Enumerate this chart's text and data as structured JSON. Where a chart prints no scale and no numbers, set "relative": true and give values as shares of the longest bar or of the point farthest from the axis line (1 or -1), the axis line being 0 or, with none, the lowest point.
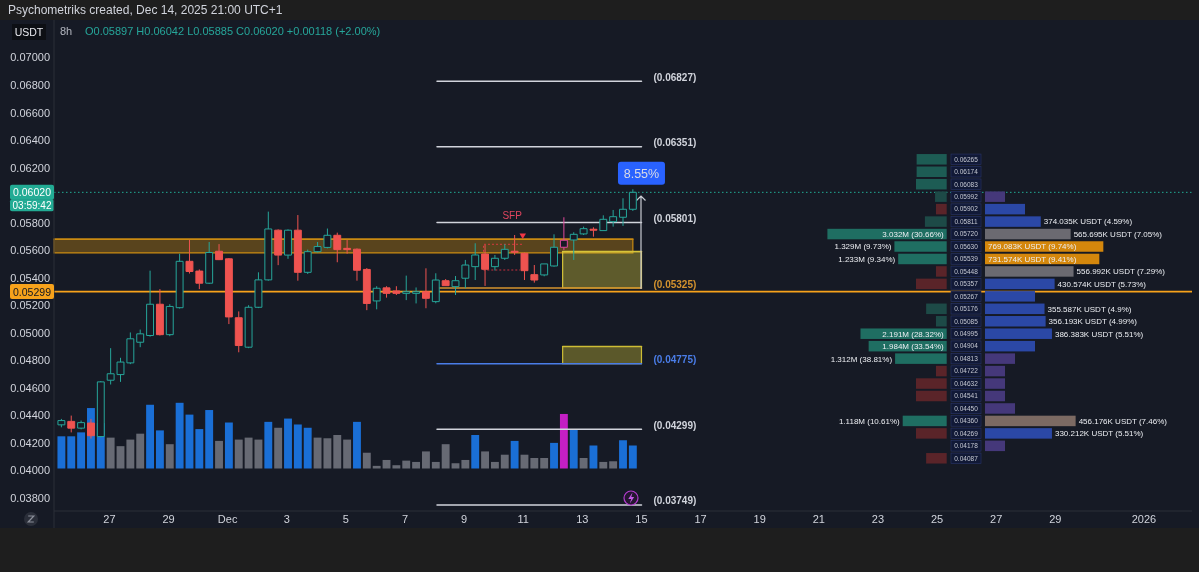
{
  "chart_data": [
    {
      "type": "candlestick",
      "title": "Psychometriks created, Dec 14, 2025 21:00 UTC+1",
      "subtitle": "8h",
      "ylabel": "USDT",
      "annotations": [
        "O0.05897 H0.06042 L0.05885 C0.06020 +0.00118 (+2.00%)",
        {
          "text": "03:59:42",
          "y": 0.0602
        },
        {
          "text": "SFP",
          "x": "2025-12-10T15:00",
          "y": 0.05801
        },
        {
          "text": "8.55%",
          "x": "2025-12-15T00:00",
          "y": 0.0602
        }
      ],
      "x": [
        "2025-11-25T09:00",
        "2025-11-25T17:00",
        "2025-11-26T01:00",
        "2025-11-26T09:00",
        "2025-11-26T17:00",
        "2025-11-27T01:00",
        "2025-11-27T09:00",
        "2025-11-27T17:00",
        "2025-11-28T01:00",
        "2025-11-28T09:00",
        "2025-11-28T17:00",
        "2025-11-29T01:00",
        "2025-11-29T09:00",
        "2025-11-29T17:00",
        "2025-11-30T01:00",
        "2025-11-30T09:00",
        "2025-11-30T17:00",
        "2025-12-01T01:00",
        "2025-12-01T09:00",
        "2025-12-01T17:00",
        "2025-12-02T01:00",
        "2025-12-02T09:00",
        "2025-12-02T17:00",
        "2025-12-03T01:00",
        "2025-12-03T09:00",
        "2025-12-03T17:00",
        "2025-12-04T01:00",
        "2025-12-04T09:00",
        "2025-12-04T17:00",
        "2025-12-05T01:00",
        "2025-12-05T09:00",
        "2025-12-05T17:00",
        "2025-12-06T01:00",
        "2025-12-06T09:00",
        "2025-12-06T17:00",
        "2025-12-07T01:00",
        "2025-12-07T09:00",
        "2025-12-07T17:00",
        "2025-12-08T01:00",
        "2025-12-08T09:00",
        "2025-12-08T17:00",
        "2025-12-09T01:00",
        "2025-12-09T09:00",
        "2025-12-09T17:00",
        "2025-12-10T01:00",
        "2025-12-10T09:00",
        "2025-12-10T17:00",
        "2025-12-11T01:00",
        "2025-12-11T09:00",
        "2025-12-11T17:00",
        "2025-12-12T01:00",
        "2025-12-12T09:00",
        "2025-12-12T17:00",
        "2025-12-13T01:00",
        "2025-12-13T09:00",
        "2025-12-13T17:00",
        "2025-12-14T01:00",
        "2025-12-14T09:00",
        "2025-12-14T17:00"
      ],
      "ohlc": [
        [
          0.04331,
          0.04374,
          0.04313,
          0.04362
        ],
        [
          0.04356,
          0.04398,
          0.04276,
          0.04307
        ],
        [
          0.04307,
          0.04362,
          0.04298,
          0.04347
        ],
        [
          0.04344,
          0.04374,
          0.04231,
          0.04252
        ],
        [
          0.04246,
          0.04649,
          0.0424,
          0.04643
        ],
        [
          0.04655,
          0.04888,
          0.04624,
          0.04702
        ],
        [
          0.04696,
          0.04818,
          0.04643,
          0.04787
        ],
        [
          0.04781,
          0.05002,
          0.04772,
          0.04956
        ],
        [
          0.04931,
          0.05023,
          0.04895,
          0.04992
        ],
        [
          0.0498,
          0.05451,
          0.04971,
          0.05207
        ],
        [
          0.05207,
          0.05317,
          0.0498,
          0.04986
        ],
        [
          0.04986,
          0.05207,
          0.04975,
          0.05191
        ],
        [
          0.05182,
          0.05574,
          0.05176,
          0.05519
        ],
        [
          0.05519,
          0.05675,
          0.0543,
          0.05445
        ],
        [
          0.05448,
          0.0546,
          0.05317,
          0.0536
        ],
        [
          0.0536,
          0.05659,
          0.05354,
          0.05583
        ],
        [
          0.05592,
          0.05644,
          0.05528,
          0.05531
        ],
        [
          0.05537,
          0.05543,
          0.05063,
          0.05115
        ],
        [
          0.05109,
          0.05155,
          0.04858,
          0.04907
        ],
        [
          0.04895,
          0.052,
          0.04888,
          0.05185
        ],
        [
          0.05185,
          0.05439,
          0.05179,
          0.05384
        ],
        [
          0.05384,
          0.0588,
          0.05378,
          0.05754
        ],
        [
          0.05745,
          0.05751,
          0.05491,
          0.05564
        ],
        [
          0.05564,
          0.05751,
          0.05537,
          0.05745
        ],
        [
          0.05745,
          0.05855,
          0.05378,
          0.05439
        ],
        [
          0.05439,
          0.05604,
          0.05427,
          0.05589
        ],
        [
          0.05589,
          0.05659,
          0.05583,
          0.05626
        ],
        [
          0.0562,
          0.05757,
          0.05613,
          0.05708
        ],
        [
          0.05708,
          0.05727,
          0.05512,
          0.05604
        ],
        [
          0.05613,
          0.05675,
          0.05574,
          0.05604
        ],
        [
          0.05607,
          0.05613,
          0.05378,
          0.05454
        ],
        [
          0.0546,
          0.0547,
          0.05164,
          0.05213
        ],
        [
          0.05231,
          0.05338,
          0.0517,
          0.05323
        ],
        [
          0.05326,
          0.05338,
          0.05255,
          0.05286
        ],
        [
          0.05304,
          0.05338,
          0.05274,
          0.05286
        ],
        [
          0.05286,
          0.05415,
          0.05237,
          0.05298
        ],
        [
          0.05286,
          0.05329,
          0.05213,
          0.05298
        ],
        [
          0.05298,
          0.05468,
          0.05178,
          0.0525
        ],
        [
          0.05226,
          0.05432,
          0.05214,
          0.05383
        ],
        [
          0.05378,
          0.0539,
          0.0534,
          0.05342
        ],
        [
          0.05335,
          0.05412,
          0.05274,
          0.05378
        ],
        [
          0.05396,
          0.05529,
          0.05323,
          0.05492
        ],
        [
          0.0548,
          0.0565,
          0.05383,
          0.05565
        ],
        [
          0.05572,
          0.05638,
          0.0534,
          0.05461
        ],
        [
          0.0548,
          0.05565,
          0.05452,
          0.05541
        ],
        [
          0.05541,
          0.05643,
          0.05529,
          0.05606
        ],
        [
          0.05592,
          0.0571,
          0.05565,
          0.05586
        ],
        [
          0.05577,
          0.05582,
          0.05383,
          0.05451
        ],
        [
          0.05422,
          0.05492,
          0.05364,
          0.05383
        ],
        [
          0.0542,
          0.055,
          0.0541,
          0.055
        ],
        [
          0.05485,
          0.05715,
          0.0548,
          0.05621
        ],
        [
          0.05621,
          0.05839,
          0.05601,
          0.05672
        ],
        [
          0.05674,
          0.0573,
          0.05529,
          0.05715
        ],
        [
          0.05718,
          0.05771,
          0.0571,
          0.05756
        ],
        [
          0.05752,
          0.05766,
          0.05698,
          0.05747
        ],
        [
          0.05742,
          0.05853,
          0.05742,
          0.05824
        ],
        [
          0.05807,
          0.05892,
          0.05771,
          0.05843
        ],
        [
          0.05839,
          0.05977,
          0.05776,
          0.05897
        ],
        [
          0.05897,
          0.06042,
          0.05885,
          0.0602
        ]
      ],
      "colors": [
        "#26a69a",
        "#ef5350",
        "#26a69a",
        "#ef5350",
        "#26a69a",
        "#26a69a",
        "#26a69a",
        "#26a69a",
        "#26a69a",
        "#26a69a",
        "#ef5350",
        "#26a69a",
        "#26a69a",
        "#ef5350",
        "#ef5350",
        "#26a69a",
        "#ef5350",
        "#ef5350",
        "#ef5350",
        "#26a69a",
        "#26a69a",
        "#26a69a",
        "#ef5350",
        "#26a69a",
        "#ef5350",
        "#26a69a",
        "#26a69a",
        "#26a69a",
        "#ef5350",
        "#ef5350",
        "#ef5350",
        "#ef5350",
        "#26a69a",
        "#ef5350",
        "#ef5350",
        "#26a69a",
        "#26a69a",
        "#ef5350",
        "#26a69a",
        "#ef5350",
        "#26a69a",
        "#26a69a",
        "#26a69a",
        "#ef5350",
        "#26a69a",
        "#26a69a",
        "#ef5350",
        "#ef5350",
        "#ef5350",
        "#26a69a",
        "#26a69a",
        "#e0489a",
        "#26a69a",
        "#26a69a",
        "#ef5350",
        "#26a69a",
        "#26a69a",
        "#26a69a",
        "#26a69a"
      ],
      "xlim": [
        "2025-11-25T03:00",
        "2026-01-02T15:00"
      ],
      "xticks": [
        {
          "value": "2025-11-27",
          "label": "27"
        },
        {
          "value": "2025-11-29",
          "label": "29"
        },
        {
          "value": "2025-12-01",
          "label": "Dec"
        },
        {
          "value": "2025-12-03",
          "label": "3"
        },
        {
          "value": "2025-12-05",
          "label": "5"
        },
        {
          "value": "2025-12-07",
          "label": "7"
        },
        {
          "value": "2025-12-09",
          "label": "9"
        },
        {
          "value": "2025-12-11",
          "label": "11"
        },
        {
          "value": "2025-12-13",
          "label": "13"
        },
        {
          "value": "2025-12-15",
          "label": "15"
        },
        {
          "value": "2025-12-17",
          "label": "17"
        },
        {
          "value": "2025-12-19",
          "label": "19"
        },
        {
          "value": "2025-12-21",
          "label": "21"
        },
        {
          "value": "2025-12-23",
          "label": "23"
        },
        {
          "value": "2025-12-25",
          "label": "25"
        },
        {
          "value": "2025-12-27",
          "label": "27"
        },
        {
          "value": "2025-12-29",
          "label": "29"
        },
        {
          "value": "2026-01-01",
          "label": "2026"
        }
      ],
      "ylim": [
        0.03705,
        0.07272
      ],
      "yticks": [
        {
          "value": 0.038,
          "label": "0.03800"
        },
        {
          "value": 0.04,
          "label": "0.04000"
        },
        {
          "value": 0.042,
          "label": "0.04200"
        },
        {
          "value": 0.044,
          "label": "0.04400"
        },
        {
          "value": 0.046,
          "label": "0.04600"
        },
        {
          "value": 0.048,
          "label": "0.04800"
        },
        {
          "value": 0.05,
          "label": "0.05000"
        },
        {
          "value": 0.052,
          "label": "0.05200"
        },
        {
          "value": 0.054,
          "label": "0.05400"
        },
        {
          "value": 0.056,
          "label": "0.05600"
        },
        {
          "value": 0.058,
          "label": "0.05800"
        },
        {
          "value": 0.062,
          "label": "0.06200"
        },
        {
          "value": 0.064,
          "label": "0.06400"
        },
        {
          "value": 0.066,
          "label": "0.06600"
        },
        {
          "value": 0.068,
          "label": "0.06800"
        },
        {
          "value": 0.07,
          "label": "0.07000"
        }
      ],
      "ref_lines": [
        {
          "axis": "y",
          "value": 0.0602,
          "label": "0.06020",
          "color": "#22ab94",
          "line_style": "dotted"
        },
        {
          "axis": "y",
          "value": 0.05299,
          "label": "0.05299",
          "color": "#f7a21b"
        }
      ],
      "series": [
        {
          "type": "line",
          "x": [
            "2025-11-25T03:00",
            "2025-12-14T17:00"
          ],
          "values": [
            0.0568,
            0.0568
          ],
          "lower": [
            0.0558,
            0.0558
          ],
          "upper": [
            0.0568,
            0.0568
          ],
          "color": "#c98a12"
        },
        {
          "type": "line",
          "x": [
            "2025-12-12T08:00",
            "2025-12-15T00:00"
          ],
          "values": [
            0.0559,
            0.0559
          ],
          "lower": [
            0.05325,
            0.05325
          ],
          "upper": [
            0.0559,
            0.0559
          ],
          "color": "#d6c43a"
        },
        {
          "type": "line",
          "x": [
            "2025-12-12T08:00",
            "2025-12-15T00:00"
          ],
          "values": [
            0.049,
            0.049
          ],
          "lower": [
            0.04775,
            0.04775
          ],
          "upper": [
            0.049,
            0.049
          ],
          "color": "#cdbd35"
        },
        {
          "type": "line",
          "name": "(0.06827)",
          "x": [
            "2025-12-08T02:00",
            "2025-12-15T00:00"
          ],
          "values": [
            0.06827,
            0.06827
          ],
          "color": "#d1d4dc"
        },
        {
          "type": "line",
          "name": "(0.06351)",
          "x": [
            "2025-12-08T02:00",
            "2025-12-15T00:00"
          ],
          "values": [
            0.06351,
            0.06351
          ],
          "color": "#d1d4dc"
        },
        {
          "type": "line",
          "name": "(0.05801)",
          "x": [
            "2025-12-08T02:00",
            "2025-12-15T00:00"
          ],
          "values": [
            0.05801,
            0.05801
          ],
          "color": "#d1d4dc"
        },
        {
          "type": "line",
          "name": "(0.05325)",
          "x": [
            "2025-12-08T02:00",
            "2025-12-15T00:00"
          ],
          "values": [
            0.05325,
            0.05325
          ],
          "color": "#d3922e"
        },
        {
          "type": "line",
          "name": "(0.04775)",
          "x": [
            "2025-12-08T02:00",
            "2025-12-15T00:00"
          ],
          "values": [
            0.04775,
            0.04775
          ],
          "color": "#4a7de8"
        },
        {
          "type": "line",
          "name": "(0.04299)",
          "x": [
            "2025-12-08T02:00",
            "2025-12-15T00:00"
          ],
          "values": [
            0.04299,
            0.04299
          ],
          "color": "#d1d4dc"
        },
        {
          "type": "line",
          "name": "(0.03749)",
          "x": [
            "2025-12-08T02:00",
            "2025-12-15T00:00"
          ],
          "values": [
            0.03749,
            0.03749
          ],
          "color": "#d1d4dc"
        }
      ]
    },
    {
      "type": "bar",
      "relative": true,
      "tick_labels": false,
      "x": [
        "2025-11-25T09:00",
        "2025-11-25T17:00",
        "2025-11-26T01:00",
        "2025-11-26T09:00",
        "2025-11-26T17:00",
        "2025-11-27T01:00",
        "2025-11-27T09:00",
        "2025-11-27T17:00",
        "2025-11-28T01:00",
        "2025-11-28T09:00",
        "2025-11-28T17:00",
        "2025-11-29T01:00",
        "2025-11-29T09:00",
        "2025-11-29T17:00",
        "2025-11-30T01:00",
        "2025-11-30T09:00",
        "2025-11-30T17:00",
        "2025-12-01T01:00",
        "2025-12-01T09:00",
        "2025-12-01T17:00",
        "2025-12-02T01:00",
        "2025-12-02T09:00",
        "2025-12-02T17:00",
        "2025-12-03T01:00",
        "2025-12-03T09:00",
        "2025-12-03T17:00",
        "2025-12-04T01:00",
        "2025-12-04T09:00",
        "2025-12-04T17:00",
        "2025-12-05T01:00",
        "2025-12-05T09:00",
        "2025-12-05T17:00",
        "2025-12-06T01:00",
        "2025-12-06T09:00",
        "2025-12-06T17:00",
        "2025-12-07T01:00",
        "2025-12-07T09:00",
        "2025-12-07T17:00",
        "2025-12-08T01:00",
        "2025-12-08T09:00",
        "2025-12-08T17:00",
        "2025-12-09T01:00",
        "2025-12-09T09:00",
        "2025-12-09T17:00",
        "2025-12-10T01:00",
        "2025-12-10T09:00",
        "2025-12-10T17:00",
        "2025-12-11T01:00",
        "2025-12-11T09:00",
        "2025-12-11T17:00",
        "2025-12-12T01:00",
        "2025-12-12T09:00",
        "2025-12-12T17:00",
        "2025-12-13T01:00",
        "2025-12-13T09:00",
        "2025-12-13T17:00",
        "2025-12-14T01:00",
        "2025-12-14T09:00",
        "2025-12-14T17:00"
      ],
      "xlim": [
        "2025-11-25T03:00",
        "2026-01-02T15:00"
      ],
      "values": [
        0.49,
        0.49,
        0.55,
        0.92,
        0.69,
        0.47,
        0.34,
        0.44,
        0.53,
        0.97,
        0.58,
        0.37,
        1,
        0.82,
        0.6,
        0.89,
        0.42,
        0.7,
        0.44,
        0.47,
        0.44,
        0.71,
        0.62,
        0.76,
        0.67,
        0.62,
        0.47,
        0.46,
        0.51,
        0.44,
        0.71,
        0.24,
        0.04,
        0.13,
        0.05,
        0.12,
        0.1,
        0.26,
        0.1,
        0.37,
        0.08,
        0.13,
        0.51,
        0.26,
        0.1,
        0.21,
        0.42,
        0.21,
        0.16,
        0.16,
        0.39,
        0.83,
        0.6,
        0.16,
        0.35,
        0.1,
        0.11,
        0.43,
        0.35
      ],
      "colors": [
        "#1a6fd6",
        "#1a6fd6",
        "#1a6fd6",
        "#1a6fd6",
        "#1a6fd6",
        "#676a74",
        "#676a74",
        "#676a74",
        "#676a74",
        "#1a6fd6",
        "#1a6fd6",
        "#676a74",
        "#1a6fd6",
        "#1a6fd6",
        "#1a6fd6",
        "#1a6fd6",
        "#676a74",
        "#1a6fd6",
        "#676a74",
        "#676a74",
        "#676a74",
        "#1a6fd6",
        "#676a74",
        "#1a6fd6",
        "#1a6fd6",
        "#1a6fd6",
        "#676a74",
        "#676a74",
        "#676a74",
        "#676a74",
        "#1a6fd6",
        "#676a74",
        "#676a74",
        "#676a74",
        "#676a74",
        "#676a74",
        "#676a74",
        "#676a74",
        "#676a74",
        "#676a74",
        "#676a74",
        "#676a74",
        "#1a6fd6",
        "#676a74",
        "#676a74",
        "#676a74",
        "#1a6fd6",
        "#676a74",
        "#676a74",
        "#676a74",
        "#1a6fd6",
        "#c41fc4",
        "#1a6fd6",
        "#676a74",
        "#1a6fd6",
        "#676a74",
        "#676a74",
        "#1a6fd6",
        "#1a6fd6"
      ]
    },
    {
      "type": "bar",
      "orientation": "horizontal",
      "tick_labels": "y",
      "categories": [
        "0.06265",
        "0.06174",
        "0.06083",
        "0.05992",
        "0.05902",
        "0.05811",
        "0.05720",
        "0.05630",
        "0.05539",
        "0.05448",
        "0.05357",
        "0.05267",
        "0.05176",
        "0.05085",
        "0.04995",
        "0.04904",
        "0.04813",
        "0.04722",
        "0.04632",
        "0.04541",
        "0.04450",
        "0.04360",
        "0.04269",
        "0.04178",
        "0.04087"
      ],
      "xlim": [
        3032000,
        0
      ],
      "values": [
        null,
        null,
        null,
        null,
        null,
        null,
        3032000,
        1329000,
        1233000,
        null,
        null,
        null,
        null,
        null,
        2191000,
        1984000,
        1312000,
        null,
        null,
        null,
        null,
        1118000,
        null,
        null,
        null
      ],
      "color": "#1f6e62",
      "value_labels": [
        null,
        null,
        null,
        null,
        null,
        null,
        "3.032M (30.66%)",
        "1.329M (9.73%)",
        "1.233M (9.34%)",
        null,
        null,
        null,
        null,
        null,
        "2.191M (28.32%)",
        "1.984M (33.54%)",
        "1.312M (38.81%)",
        null,
        null,
        null,
        null,
        "1.118M (10.61%)",
        null,
        null,
        null
      ]
    },
    {
      "type": "bar",
      "orientation": "horizontal",
      "relative": true,
      "categories": [
        null,
        null,
        null,
        null,
        null,
        null,
        null,
        null,
        null,
        null,
        null,
        null,
        null,
        null,
        null,
        null,
        null,
        null,
        null,
        null,
        null,
        null,
        null,
        null,
        null
      ],
      "values": [
        -0.98,
        -0.98,
        -1,
        -0.38,
        -0.35,
        -0.71,
        null,
        null,
        null,
        -0.35,
        -1,
        null,
        -0.67,
        -0.35,
        null,
        null,
        null,
        -0.35,
        -1,
        -1,
        null,
        null,
        -1,
        null,
        -0.67
      ],
      "colors": [
        "#1d5c54",
        "#1d5c54",
        "#1d5c54",
        "#1d4a47",
        "#5a2429",
        "#1d4a47",
        null,
        null,
        null,
        "#5a2429",
        "#5a2429",
        null,
        "#1d4a47",
        "#1d4a47",
        null,
        null,
        null,
        "#5a2429",
        "#5a2429",
        "#5a2429",
        null,
        null,
        "#5a2429",
        null,
        "#5a2429"
      ]
    },
    {
      "type": "bar",
      "orientation": "horizontal",
      "categories": [
        null,
        null,
        null,
        null,
        null,
        null,
        null,
        null,
        null,
        null,
        null,
        null,
        null,
        null,
        null,
        null,
        null,
        null,
        null,
        null,
        null,
        null,
        null,
        null,
        null
      ],
      "xlim": [
        0,
        9.82
      ],
      "values": [
        null,
        null,
        null,
        null,
        null,
        4.59,
        7.05,
        9.74,
        9.41,
        7.29,
        5.73,
        null,
        4.9,
        4.99,
        5.51,
        null,
        null,
        null,
        null,
        null,
        null,
        7.46,
        5.51,
        null,
        null
      ],
      "colors": [
        null,
        null,
        null,
        null,
        null,
        "#2b48a6",
        "#6b6a71",
        "#d4870c",
        "#d4870c",
        "#6b6a71",
        "#2b48a6",
        null,
        "#2b48a6",
        "#2b48a6",
        "#2b48a6",
        null,
        null,
        null,
        null,
        null,
        null,
        "#7c6a63",
        "#2b48a6",
        null,
        null
      ],
      "value_labels": [
        null,
        null,
        null,
        null,
        null,
        "374.035K USDT (4.59%)",
        "565.695K USDT (7.05%)",
        "769.083K USDT (9.74%)",
        "731.574K USDT (9.41%)",
        "556.992K USDT (7.29%)",
        "430.574K USDT (5.73%)",
        null,
        "355.587K USDT (4.9%)",
        "356.193K USDT (4.99%)",
        "386.383K USDT (5.51%)",
        null,
        null,
        null,
        null,
        null,
        null,
        "456.176K USDT (7.46%)",
        "330.212K USDT (5.51%)",
        null,
        null
      ]
    },
    {
      "type": "bar",
      "orientation": "horizontal",
      "relative": true,
      "categories": [
        null,
        null,
        null,
        null,
        null,
        null,
        null,
        null,
        null,
        null,
        null,
        null,
        null,
        null,
        null,
        null,
        null,
        null,
        null,
        null,
        null,
        null,
        null,
        null,
        null
      ],
      "values": [
        null,
        null,
        null,
        0.4,
        0.8,
        null,
        null,
        null,
        null,
        null,
        null,
        1,
        null,
        null,
        null,
        1,
        0.6,
        0.4,
        0.4,
        0.4,
        0.6,
        null,
        null,
        0.4,
        null
      ],
      "colors": [
        null,
        null,
        null,
        "#45387a",
        "#2b48a6",
        null,
        null,
        null,
        null,
        null,
        null,
        "#2b48a6",
        null,
        null,
        null,
        "#2b48a6",
        "#45387a",
        "#45387a",
        "#45387a",
        "#45387a",
        "#45387a",
        null,
        null,
        "#45387a",
        null
      ]
    }
  ]
}
